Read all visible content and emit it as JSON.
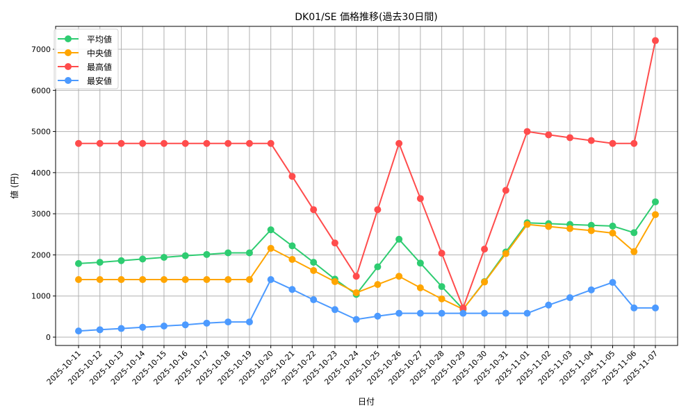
{
  "chart_data": {
    "type": "line",
    "title": "DK01/SE 価格推移(過去30日間)",
    "xlabel": "日付",
    "ylabel": "値 (円)",
    "ylim": [
      -200,
      7550
    ],
    "yticks": [
      0,
      1000,
      2000,
      3000,
      4000,
      5000,
      6000,
      7000
    ],
    "grid": true,
    "legend_position": "upper left",
    "categories": [
      "2025-10-11",
      "2025-10-12",
      "2025-10-13",
      "2025-10-14",
      "2025-10-15",
      "2025-10-16",
      "2025-10-17",
      "2025-10-18",
      "2025-10-19",
      "2025-10-20",
      "2025-10-21",
      "2025-10-22",
      "2025-10-23",
      "2025-10-24",
      "2025-10-25",
      "2025-10-26",
      "2025-10-27",
      "2025-10-28",
      "2025-10-29",
      "2025-10-30",
      "2025-10-31",
      "2025-11-01",
      "2025-11-02",
      "2025-11-03",
      "2025-11-04",
      "2025-11-05",
      "2025-11-06",
      "2025-11-07"
    ],
    "series": [
      {
        "name": "平均値",
        "color": "#2ecc71",
        "values": [
          1790,
          1820,
          1860,
          1900,
          1940,
          1980,
          2010,
          2050,
          2050,
          2610,
          2220,
          1820,
          1410,
          1040,
          1710,
          2380,
          1800,
          1230,
          680,
          1350,
          2070,
          2780,
          2760,
          2740,
          2720,
          2700,
          2540,
          3290
        ]
      },
      {
        "name": "中央値",
        "color": "#ffa500",
        "values": [
          1400,
          1400,
          1400,
          1400,
          1400,
          1400,
          1400,
          1400,
          1400,
          2160,
          1890,
          1620,
          1350,
          1080,
          1280,
          1480,
          1200,
          930,
          680,
          1340,
          2030,
          2740,
          2690,
          2640,
          2590,
          2530,
          2080,
          2980
        ]
      },
      {
        "name": "最高値",
        "color": "#ff4c4c",
        "values": [
          4710,
          4710,
          4710,
          4710,
          4710,
          4710,
          4710,
          4710,
          4710,
          4710,
          3910,
          3100,
          2290,
          1480,
          3100,
          4710,
          3370,
          2040,
          710,
          2140,
          3570,
          5000,
          4920,
          4850,
          4780,
          4710,
          4710,
          7210
        ]
      },
      {
        "name": "最安値",
        "color": "#4c9aff",
        "values": [
          150,
          180,
          210,
          240,
          270,
          300,
          340,
          370,
          370,
          1400,
          1160,
          910,
          670,
          430,
          510,
          580,
          580,
          580,
          580,
          580,
          580,
          580,
          780,
          960,
          1150,
          1330,
          710,
          710
        ]
      }
    ]
  }
}
